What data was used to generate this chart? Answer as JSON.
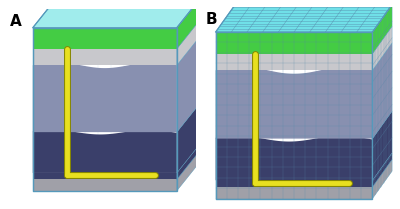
{
  "fig_width": 4.0,
  "fig_height": 2.09,
  "dpi": 100,
  "bg_color": "#ffffff",
  "colors": {
    "cyan_top": "#7EEAEA",
    "green_band": "#44CC44",
    "light_gray": "#C8C8CC",
    "medium_blue_gray": "#8890B0",
    "dark_navy": "#3A3F6A",
    "bottom_gray": "#A0A0A8",
    "box_edge": "#5599BB",
    "well_yellow": "#E8D820",
    "well_outline": "#888800",
    "grid_color": "#5588AA",
    "top_face_cyan": "#A0ECEC",
    "top_face_cyan_B": "#70E0E8"
  },
  "well_color": "#E8E020",
  "well_lw": 3.5,
  "grid_alpha": 0.5
}
